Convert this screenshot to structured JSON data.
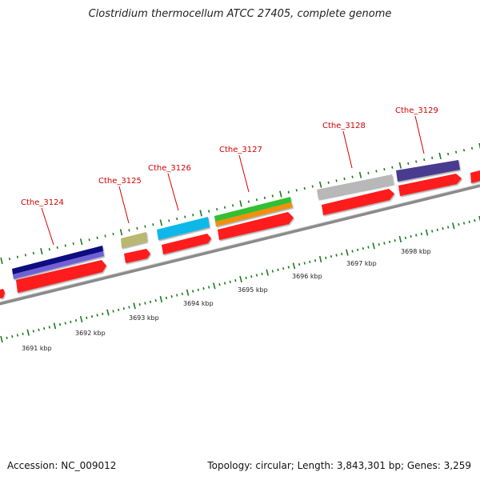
{
  "title": "Clostridium thermocellum ATCC 27405, complete genome",
  "footer": {
    "accession": "Accession: NC_009012",
    "summary": "Topology: circular; Length: 3,843,301 bp; Genes: 3,259"
  },
  "colors": {
    "gene_arrow": "#ff1a1a",
    "label_red": "#d40000",
    "tick_green": "#1e7a1e",
    "backbone_gray": "#8a8a8a"
  },
  "genes": [
    {
      "label": "Cthe_3124",
      "cog_colors": [
        "#0b0b80",
        "#7060d8"
      ]
    },
    {
      "label": "Cthe_3125",
      "cog_colors": [
        "#b8b870"
      ]
    },
    {
      "label": "Cthe_3126",
      "cog_colors": [
        "#10b8e8"
      ]
    },
    {
      "label": "Cthe_3127",
      "cog_colors": [
        "#30c030",
        "#f0900a"
      ]
    },
    {
      "label": "Cthe_3128",
      "cog_colors": [
        "#b8b8b8"
      ]
    },
    {
      "label": "Cthe_3129",
      "cog_colors": [
        "#4a3a90"
      ]
    }
  ],
  "kbp_ticks": [
    "3691 kbp",
    "3692 kbp",
    "3693 kbp",
    "3694 kbp",
    "3695 kbp",
    "3696 kbp",
    "3697 kbp",
    "3698 kbp"
  ]
}
